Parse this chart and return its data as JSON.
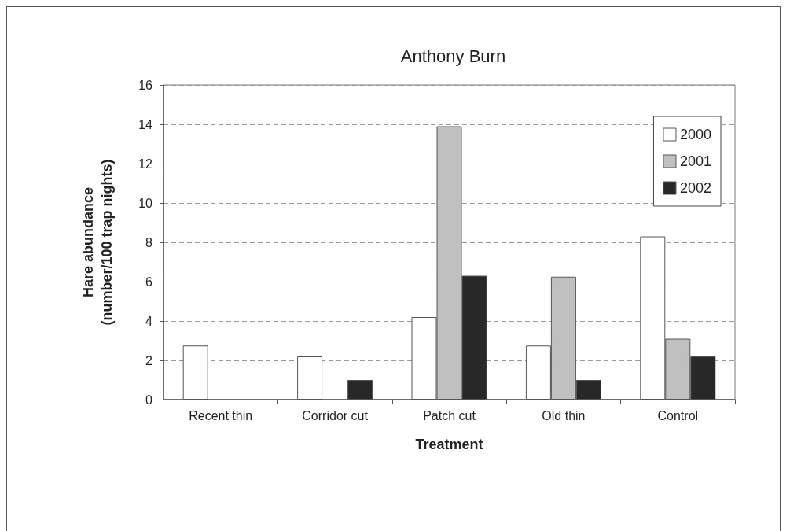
{
  "chart_data": {
    "type": "bar",
    "title": "Anthony Burn",
    "xlabel": "Treatment",
    "ylabel": "Hare abundance\n(number/100 trap nights)",
    "categories": [
      "Recent thin",
      "Corridor cut",
      "Patch cut",
      "Old thin",
      "Control"
    ],
    "series": [
      {
        "name": "2000",
        "color": "#ffffff",
        "values": [
          2.75,
          2.2,
          4.2,
          2.75,
          8.3
        ]
      },
      {
        "name": "2001",
        "color": "#c0c0c0",
        "values": [
          0,
          0,
          13.9,
          6.25,
          3.1
        ]
      },
      {
        "name": "2002",
        "color": "#282828",
        "values": [
          0,
          1.0,
          6.3,
          1.0,
          2.2
        ]
      }
    ],
    "ylim": [
      0,
      16
    ],
    "yticks": [
      0,
      2,
      4,
      6,
      8,
      10,
      12,
      14,
      16
    ],
    "grid": "y",
    "legend": "top right"
  }
}
